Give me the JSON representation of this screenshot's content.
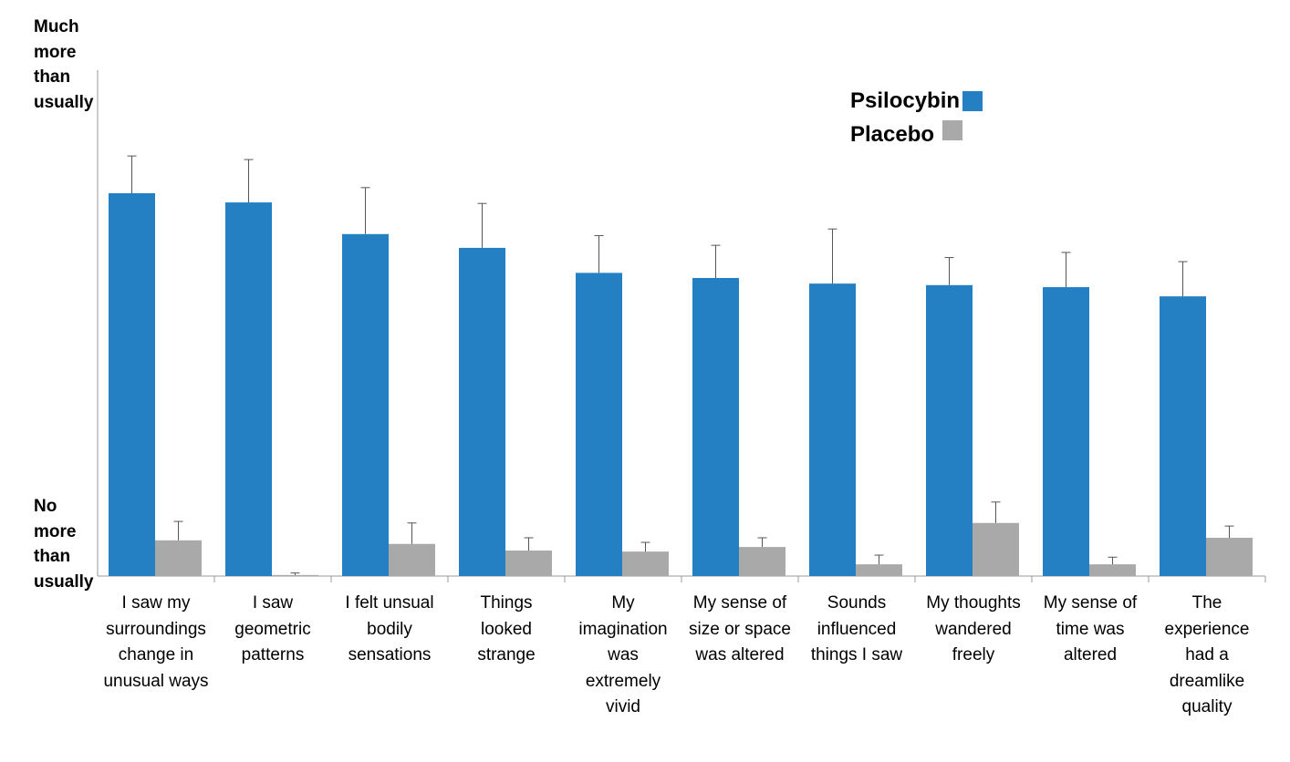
{
  "chart_data": {
    "type": "bar",
    "y_top_label": "Much\nmore\nthan\nusually",
    "y_bottom_label": "No\nmore\nthan\nusually",
    "ylim": [
      0,
      100
    ],
    "grid": false,
    "legend_position": "top-right",
    "categories": [
      "I saw my\nsurroundings\nchange in\nunusual ways",
      "I saw\ngeometric\npatterns",
      "I felt unsual\nbodily\nsensations",
      "Things\nlooked\nstrange",
      "My\nimagination\nwas\nextremely\nvivid",
      "My sense of\nsize or space\nwas altered",
      "Sounds\ninfluenced\nthings I saw",
      "My thoughts\nwandered\nfreely",
      "My sense of\ntime was\naltered",
      "The\nexperience\nhad a\ndreamlike\nquality"
    ],
    "series": [
      {
        "name": "Psilocybin",
        "color": "#2580C3",
        "values": [
          75.0,
          73.2,
          67.0,
          64.3,
          59.4,
          58.4,
          57.3,
          57.0,
          56.6,
          54.8
        ],
        "errors": [
          7.3,
          8.4,
          9.1,
          8.7,
          7.3,
          6.4,
          10.7,
          5.4,
          6.8,
          6.8
        ]
      },
      {
        "name": "Placebo",
        "color": "#A9A9A9",
        "values": [
          7.0,
          0.2,
          6.3,
          5.0,
          4.8,
          5.7,
          2.3,
          10.4,
          2.3,
          7.5
        ],
        "errors": [
          3.7,
          0.4,
          4.1,
          2.5,
          1.8,
          1.8,
          1.8,
          4.1,
          1.4,
          2.3
        ]
      }
    ]
  }
}
